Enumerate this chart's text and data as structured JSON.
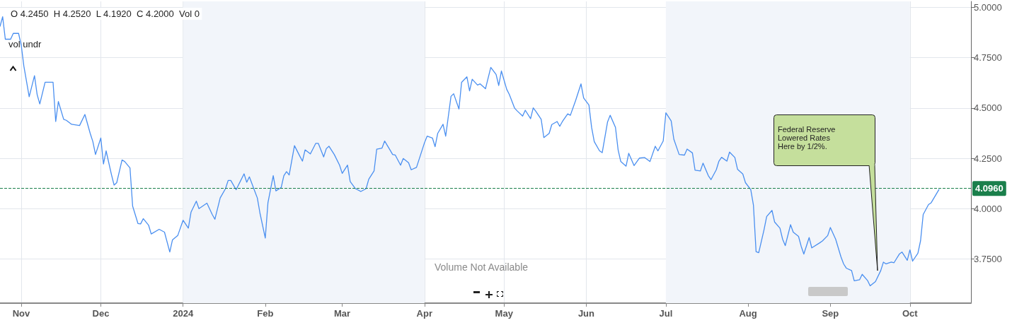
{
  "chart_data": {
    "type": "line",
    "x": [
      "2023-10-24",
      "2023-10-25",
      "2023-10-26",
      "2023-10-28",
      "2023-10-29",
      "2023-10-31",
      "2023-11-01",
      "2023-11-02",
      "2023-11-04",
      "2023-11-06",
      "2023-11-07",
      "2023-11-08",
      "2023-11-10",
      "2023-11-13",
      "2023-11-14",
      "2023-11-15",
      "2023-11-17",
      "2023-11-18",
      "2023-11-20",
      "2023-11-23",
      "2023-11-25",
      "2023-11-27",
      "2023-11-28",
      "2023-11-29",
      "2023-12-01",
      "2023-12-02",
      "2023-12-03",
      "2023-12-05",
      "2023-12-06",
      "2023-12-07",
      "2023-12-09",
      "2023-12-10",
      "2023-12-12",
      "2023-12-13",
      "2023-12-15",
      "2023-12-16",
      "2023-12-17",
      "2023-12-19",
      "2023-12-20",
      "2023-12-23",
      "2023-12-25",
      "2023-12-27",
      "2023-12-28",
      "2023-12-30",
      "2024-01-01",
      "2024-01-03",
      "2024-01-04",
      "2024-01-06",
      "2024-01-07",
      "2024-01-10",
      "2024-01-12",
      "2024-01-13",
      "2024-01-15",
      "2024-01-17",
      "2024-01-18",
      "2024-01-19",
      "2024-01-21",
      "2024-01-24",
      "2024-01-25",
      "2024-01-26",
      "2024-01-28",
      "2024-01-29",
      "2024-01-30",
      "2024-02-01",
      "2024-02-02",
      "2024-02-04",
      "2024-02-05",
      "2024-02-07",
      "2024-02-08",
      "2024-02-09",
      "2024-02-10",
      "2024-02-12",
      "2024-02-14",
      "2024-02-15",
      "2024-02-16",
      "2024-02-18",
      "2024-02-20",
      "2024-02-21",
      "2024-02-23",
      "2024-02-24",
      "2024-02-25",
      "2024-02-27",
      "2024-02-29",
      "2024-03-01",
      "2024-03-03",
      "2024-03-04",
      "2024-03-06",
      "2024-03-08",
      "2024-03-10",
      "2024-03-11",
      "2024-03-13",
      "2024-03-14",
      "2024-03-16",
      "2024-03-17",
      "2024-03-19",
      "2024-03-20",
      "2024-03-21",
      "2024-03-23",
      "2024-03-24",
      "2024-03-26",
      "2024-03-27",
      "2024-03-29",
      "2024-04-01",
      "2024-04-02",
      "2024-04-04",
      "2024-04-05",
      "2024-04-06",
      "2024-04-08",
      "2024-04-09",
      "2024-04-11",
      "2024-04-12",
      "2024-04-14",
      "2024-04-15",
      "2024-04-17",
      "2024-04-18",
      "2024-04-19",
      "2024-04-21",
      "2024-04-22",
      "2024-04-24",
      "2024-04-26",
      "2024-04-28",
      "2024-04-29",
      "2024-04-30",
      "2024-05-02",
      "2024-05-03",
      "2024-05-05",
      "2024-05-06",
      "2024-05-08",
      "2024-05-09",
      "2024-05-11",
      "2024-05-12",
      "2024-05-13",
      "2024-05-15",
      "2024-05-16",
      "2024-05-18",
      "2024-05-19",
      "2024-05-21",
      "2024-05-22",
      "2024-05-23",
      "2024-05-25",
      "2024-05-26",
      "2024-05-28",
      "2024-05-30",
      "2024-05-31",
      "2024-06-02",
      "2024-06-03",
      "2024-06-04",
      "2024-06-06",
      "2024-06-07",
      "2024-06-09",
      "2024-06-10",
      "2024-06-12",
      "2024-06-13",
      "2024-06-14",
      "2024-06-16",
      "2024-06-17",
      "2024-06-19",
      "2024-06-21",
      "2024-06-23",
      "2024-06-25",
      "2024-06-27",
      "2024-06-28",
      "2024-06-30",
      "2024-07-01",
      "2024-07-03",
      "2024-07-04",
      "2024-07-06",
      "2024-07-08",
      "2024-07-09",
      "2024-07-11",
      "2024-07-12",
      "2024-07-14",
      "2024-07-15",
      "2024-07-17",
      "2024-07-18",
      "2024-07-20",
      "2024-07-21",
      "2024-07-22",
      "2024-07-24",
      "2024-07-25",
      "2024-07-27",
      "2024-07-28",
      "2024-07-30",
      "2024-07-31",
      "2024-08-02",
      "2024-08-03",
      "2024-08-04",
      "2024-08-05",
      "2024-08-07",
      "2024-08-08",
      "2024-08-10",
      "2024-08-11",
      "2024-08-13",
      "2024-08-14",
      "2024-08-15",
      "2024-08-17",
      "2024-08-18",
      "2024-08-20",
      "2024-08-21",
      "2024-08-22",
      "2024-08-24",
      "2024-08-25",
      "2024-08-28",
      "2024-08-29",
      "2024-08-31",
      "2024-09-01",
      "2024-09-03",
      "2024-09-05",
      "2024-09-06",
      "2024-09-07",
      "2024-09-09",
      "2024-09-10",
      "2024-09-12",
      "2024-09-13",
      "2024-09-15",
      "2024-09-16",
      "2024-09-18",
      "2024-09-20",
      "2024-09-21",
      "2024-09-22",
      "2024-09-24",
      "2024-09-25",
      "2024-09-27",
      "2024-09-28",
      "2024-09-30",
      "2024-10-01",
      "2024-10-02",
      "2024-10-04",
      "2024-10-05",
      "2024-10-06",
      "2024-10-08",
      "2024-10-09",
      "2024-10-12"
    ],
    "series": [
      {
        "color": "#4a8ff0",
        "values": [
          4.905,
          4.954,
          4.842,
          4.842,
          4.871,
          4.871,
          4.813,
          4.708,
          4.556,
          4.661,
          4.567,
          4.52,
          4.628,
          4.628,
          4.433,
          4.532,
          4.444,
          4.439,
          4.419,
          4.413,
          4.468,
          4.374,
          4.333,
          4.269,
          4.351,
          4.222,
          4.287,
          4.17,
          4.117,
          4.129,
          4.242,
          4.234,
          4.202,
          4.012,
          3.926,
          3.924,
          3.95,
          3.918,
          3.874,
          3.897,
          3.883,
          3.784,
          3.844,
          3.866,
          3.942,
          3.903,
          3.982,
          4.037,
          4.0,
          4.027,
          3.971,
          3.947,
          4.053,
          4.099,
          4.14,
          4.14,
          4.094,
          4.173,
          4.131,
          4.158,
          4.088,
          4.053,
          3.977,
          3.854,
          4.029,
          4.164,
          4.088,
          4.105,
          4.164,
          4.184,
          4.167,
          4.313,
          4.261,
          4.236,
          4.292,
          4.272,
          4.324,
          4.324,
          4.257,
          4.298,
          4.31,
          4.269,
          4.216,
          4.175,
          4.216,
          4.135,
          4.099,
          4.085,
          4.099,
          4.146,
          4.187,
          4.295,
          4.301,
          4.336,
          4.292,
          4.269,
          4.266,
          4.216,
          4.249,
          4.228,
          4.193,
          4.205,
          4.327,
          4.36,
          4.351,
          4.308,
          4.374,
          4.419,
          4.36,
          4.558,
          4.571,
          4.495,
          4.628,
          4.655,
          4.585,
          4.643,
          4.614,
          4.62,
          4.596,
          4.702,
          4.667,
          4.612,
          4.684,
          4.593,
          4.567,
          4.499,
          4.485,
          4.46,
          4.489,
          4.447,
          4.501,
          4.483,
          4.444,
          4.353,
          4.374,
          4.418,
          4.433,
          4.409,
          4.433,
          4.471,
          4.464,
          4.538,
          4.62,
          4.55,
          4.515,
          4.404,
          4.333,
          4.287,
          4.278,
          4.43,
          4.464,
          4.404,
          4.292,
          4.234,
          4.211,
          4.275,
          4.214,
          4.251,
          4.254,
          4.234,
          4.31,
          4.287,
          4.336,
          4.476,
          4.436,
          4.345,
          4.269,
          4.266,
          4.296,
          4.277,
          4.191,
          4.187,
          4.226,
          4.164,
          4.144,
          4.193,
          4.236,
          4.255,
          4.236,
          4.281,
          4.254,
          4.196,
          4.172,
          4.129,
          4.094,
          4.018,
          3.786,
          3.781,
          3.895,
          3.961,
          3.991,
          3.933,
          3.903,
          3.848,
          3.816,
          3.92,
          3.883,
          3.862,
          3.813,
          3.774,
          3.856,
          3.805,
          3.83,
          3.839,
          3.866,
          3.906,
          3.848,
          3.76,
          3.725,
          3.704,
          3.692,
          3.641,
          3.646,
          3.673,
          3.643,
          3.616,
          3.637,
          3.692,
          3.734,
          3.725,
          3.734,
          3.731,
          3.774,
          3.784,
          3.743,
          3.795,
          3.739,
          3.778,
          3.84,
          3.971,
          4.02,
          4.029,
          4.096
        ]
      }
    ],
    "xlim": [
      "2023-10-24",
      "2024-10-24"
    ],
    "xticks": [
      {
        "value": "2023-11-01",
        "label": "Nov"
      },
      {
        "value": "2023-12-01",
        "label": "Dec"
      },
      {
        "value": "2024-01-01",
        "label": "2024"
      },
      {
        "value": "2024-02-01",
        "label": "Feb"
      },
      {
        "value": "2024-03-01",
        "label": "Mar"
      },
      {
        "value": "2024-04-01",
        "label": "Apr"
      },
      {
        "value": "2024-05-01",
        "label": "May"
      },
      {
        "value": "2024-06-01",
        "label": "Jun"
      },
      {
        "value": "2024-07-01",
        "label": "Jul"
      },
      {
        "value": "2024-08-01",
        "label": "Aug"
      },
      {
        "value": "2024-09-01",
        "label": "Sep"
      },
      {
        "value": "2024-10-01",
        "label": "Oct"
      }
    ],
    "ylim": [
      3.53,
      5.03
    ],
    "yticks": [
      {
        "value": 3.75,
        "label": "3.7500"
      },
      {
        "value": 4,
        "label": "4.0000"
      },
      {
        "value": 4.25,
        "label": "4.2500"
      },
      {
        "value": 4.5,
        "label": "4.5000"
      },
      {
        "value": 4.75,
        "label": "4.7500"
      },
      {
        "value": 5,
        "label": "5.0000"
      }
    ],
    "grid": true,
    "line_style": "solid",
    "ref_lines": [
      {
        "axis": "y",
        "value": 4.096,
        "label": "4.0960",
        "color": "#1a7f4b",
        "line_style": "dashed"
      }
    ],
    "bands": [
      {
        "axis": "x",
        "from": "2024-01-01",
        "to": "2024-04-01",
        "color": "#f2f5fa"
      },
      {
        "axis": "x",
        "from": "2024-07-01",
        "to": "2024-10-01",
        "color": "#f2f5fa"
      }
    ],
    "annotations": [
      "O 4.2450  H 4.2520  L 4.1920  C 4.2000  Vol 0",
      "vol undr",
      "Volume Not Available",
      "Federal Reserve Lowered Rates Here by 1/2%."
    ]
  }
}
